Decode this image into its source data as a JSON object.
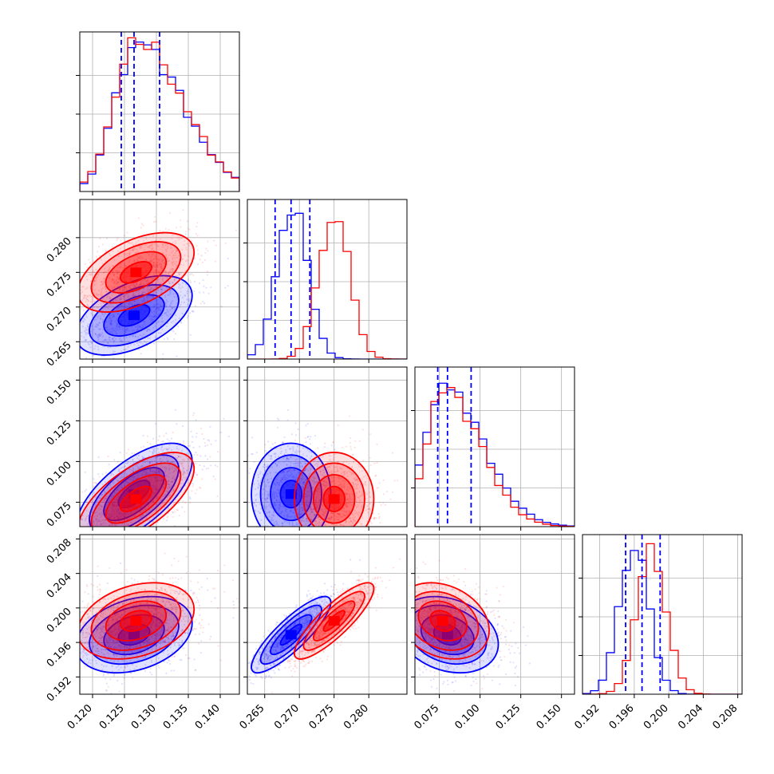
{
  "chart_data": {
    "type": "corner",
    "parameters": 4,
    "grid": true,
    "series": [
      {
        "color": "#0000ff",
        "medians": [
          0.1265,
          0.2688,
          0.08,
          0.1969
        ],
        "lower_q": [
          0.1245,
          0.2665,
          0.074,
          0.195
        ],
        "upper_q": [
          0.1305,
          0.2715,
          0.0945,
          0.199
        ],
        "hist_peak_x": [
          0.127,
          0.269,
          0.078,
          0.196
        ],
        "hist_peak": [
          0.96,
          0.98,
          0.88,
          0.95
        ],
        "spread": [
          0.0035,
          0.0022,
          0.012,
          0.0017
        ]
      },
      {
        "color": "#ff0000",
        "medians": [
          0.1268,
          0.275,
          0.077,
          0.1985
        ],
        "lower_q": null,
        "upper_q": null,
        "hist_peak_x": [
          0.127,
          0.275,
          0.078,
          0.198
        ],
        "hist_peak": [
          1.0,
          0.95,
          0.88,
          0.93
        ],
        "spread": [
          0.0035,
          0.0022,
          0.011,
          0.0017
        ]
      }
    ],
    "correlation": {
      "0-1": 0.5,
      "0-2": 0.65,
      "0-3": 0.3,
      "1-2": 0.0,
      "1-3": 0.85,
      "2-3": -0.25
    },
    "axis_ranges": [
      [
        0.118,
        0.143
      ],
      [
        0.2625,
        0.2855
      ],
      [
        0.06,
        0.158
      ],
      [
        0.19,
        0.2085
      ]
    ],
    "axes": [
      {
        "ticks": [
          0.12,
          0.125,
          0.13,
          0.135,
          0.14
        ],
        "labels": [
          "0.120",
          "0.125",
          "0.130",
          "0.135",
          "0.140"
        ]
      },
      {
        "ticks": [
          0.265,
          0.27,
          0.275,
          0.28
        ],
        "labels": [
          "0.265",
          "0.270",
          "0.275",
          "0.280"
        ]
      },
      {
        "ticks": [
          0.075,
          0.1,
          0.125,
          0.15
        ],
        "labels": [
          "0.075",
          "0.100",
          "0.125",
          "0.150"
        ]
      },
      {
        "ticks": [
          0.192,
          0.196,
          0.2,
          0.204,
          0.208
        ],
        "labels": [
          "0.192",
          "0.196",
          "0.200",
          "0.204",
          "0.208"
        ]
      }
    ]
  }
}
